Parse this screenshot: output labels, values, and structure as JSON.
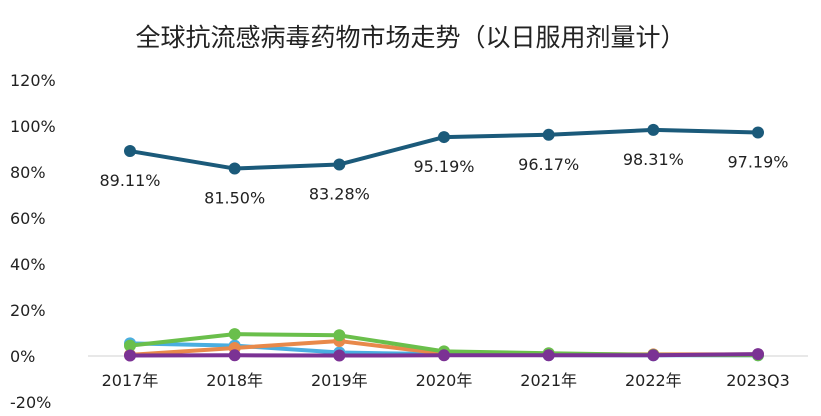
{
  "chart_data": {
    "type": "line",
    "title": "全球抗流感病毒药物市场走势（以日服用剂量计）",
    "categories": [
      "2017年",
      "2018年",
      "2019年",
      "2020年",
      "2021年",
      "2022年",
      "2023Q3"
    ],
    "y_ticks": [
      "-20%",
      "0%",
      "20%",
      "40%",
      "60%",
      "80%",
      "100%",
      "120%"
    ],
    "ylim": [
      -20,
      120
    ],
    "grid": false,
    "legend": "none",
    "series": [
      {
        "values": [
          89.11,
          81.5,
          83.28,
          95.19,
          96.17,
          98.31,
          97.19
        ],
        "color": "#1b5a7a",
        "data_labels": [
          "89.11%",
          "81.50%",
          "83.28%",
          "95.19%",
          "96.17%",
          "98.31%",
          "97.19%"
        ]
      },
      {
        "values": [
          5.5,
          4.5,
          1.5,
          0.8,
          0.4,
          0.3,
          0.3
        ],
        "color": "#4aaee0"
      },
      {
        "values": [
          0.5,
          3.5,
          6.5,
          1.0,
          0.8,
          0.7,
          0.7
        ],
        "color": "#e8894a"
      },
      {
        "values": [
          4.5,
          9.5,
          9.0,
          2.0,
          1.2,
          0.5,
          0.3
        ],
        "color": "#6abf4b"
      },
      {
        "values": [
          0.2,
          0.3,
          0.2,
          0.3,
          0.3,
          0.3,
          0.8
        ],
        "color": "#7b3294"
      }
    ]
  }
}
